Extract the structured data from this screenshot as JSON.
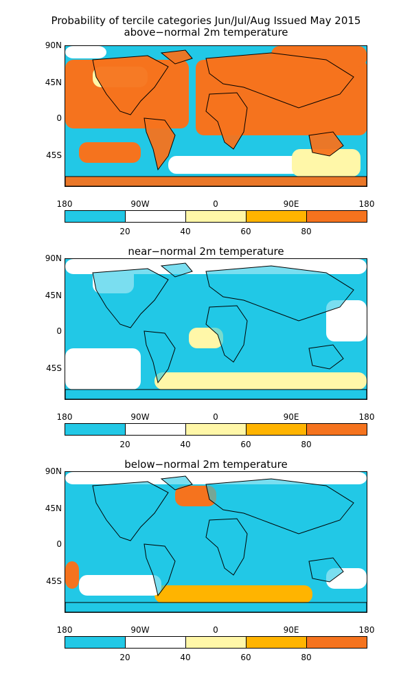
{
  "title_line1": "Probability of tercile categories Jun/Jul/Aug Issued May 2015",
  "panels": [
    {
      "subtitle": "above−normal 2m temperature",
      "dominant": "above"
    },
    {
      "subtitle": "near−normal 2m temperature",
      "dominant": "near"
    },
    {
      "subtitle": "below−normal 2m temperature",
      "dominant": "below"
    }
  ],
  "lat_labels": [
    "90N",
    "45N",
    "0",
    "45S"
  ],
  "lon_labels": [
    "180",
    "90W",
    "0",
    "90E",
    "180"
  ],
  "colorbar": {
    "labels": [
      "20",
      "40",
      "60",
      "80"
    ],
    "colors": [
      "#22c8e6",
      "#ffffff",
      "#fff7a8",
      "#ffb400",
      "#f5731e"
    ]
  }
}
